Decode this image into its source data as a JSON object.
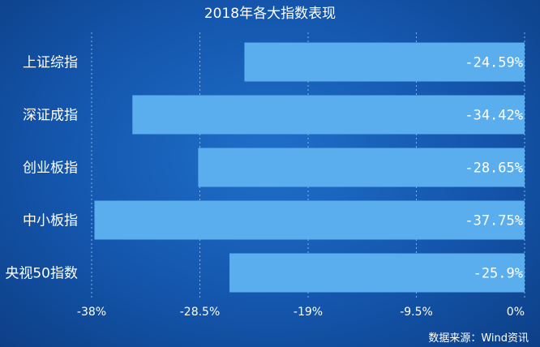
{
  "chart_data": {
    "type": "bar",
    "orientation": "horizontal",
    "title": "2018年各大指数表现",
    "categories": [
      "上证综指",
      "深证成指",
      "创业板指",
      "中小板指",
      "央视50指数"
    ],
    "values": [
      -24.59,
      -34.42,
      -28.65,
      -37.75,
      -25.9
    ],
    "value_labels": [
      "-24.59%",
      "-34.42%",
      "-28.65%",
      "-37.75%",
      "-25.9%"
    ],
    "xlim": [
      -38,
      0
    ],
    "xticks": [
      -38,
      -28.5,
      -19,
      -9.5,
      0
    ],
    "xtick_labels": [
      "-38%",
      "-28.5%",
      "-19%",
      "-9.5%",
      "0%"
    ],
    "grid": "vertical-dashed",
    "xlabel": "",
    "ylabel": ""
  },
  "source": "数据来源：Wind资讯",
  "colors": {
    "bar": "#5aaeee",
    "background": "#1456ad",
    "grid": "#7fb3e8"
  }
}
